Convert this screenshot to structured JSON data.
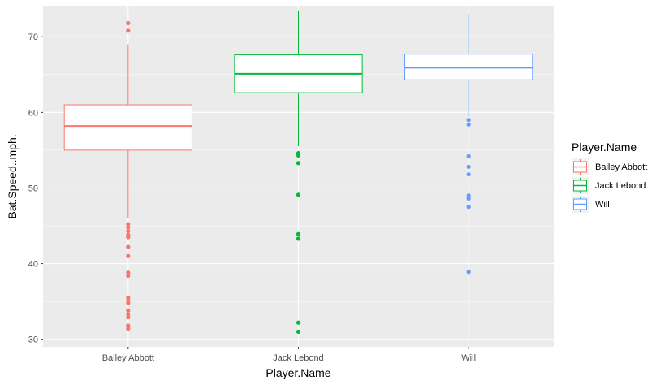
{
  "chart_data": {
    "type": "boxplot",
    "xlabel": "Player.Name",
    "ylabel": "Bat.Speed..mph.",
    "ylim": [
      29,
      74
    ],
    "y_ticks": [
      30,
      40,
      50,
      60,
      70
    ],
    "grid": true,
    "legend": {
      "title": "Player.Name",
      "position": "right"
    },
    "categories": [
      "Bailey Abbott",
      "Jack Lebond",
      "Will"
    ],
    "series": [
      {
        "name": "Bailey Abbott",
        "color": "#F8766D",
        "whisker_low": 46,
        "q1": 55,
        "median": 58.2,
        "q3": 61,
        "whisker_high": 69,
        "outliers": [
          71.8,
          70.8,
          45.2,
          44.8,
          44.3,
          43.8,
          43.5,
          42.2,
          41.0,
          38.8,
          38.4,
          35.5,
          35.1,
          34.8,
          33.8,
          33.3,
          32.9,
          31.8,
          31.4
        ]
      },
      {
        "name": "Jack Lebond",
        "color": "#00BA38",
        "whisker_low": 55.5,
        "q1": 62.6,
        "median": 65.1,
        "q3": 67.6,
        "whisker_high": 73.5,
        "outliers": [
          54.6,
          54.3,
          53.3,
          49.1,
          43.9,
          43.3,
          32.2,
          31.0
        ]
      },
      {
        "name": "Will",
        "color": "#619CFF",
        "whisker_low": 59.5,
        "q1": 64.3,
        "median": 65.9,
        "q3": 67.7,
        "whisker_high": 73,
        "outliers": [
          59.0,
          58.4,
          54.2,
          52.8,
          51.8,
          49.0,
          48.6,
          47.5,
          38.9
        ]
      }
    ]
  }
}
